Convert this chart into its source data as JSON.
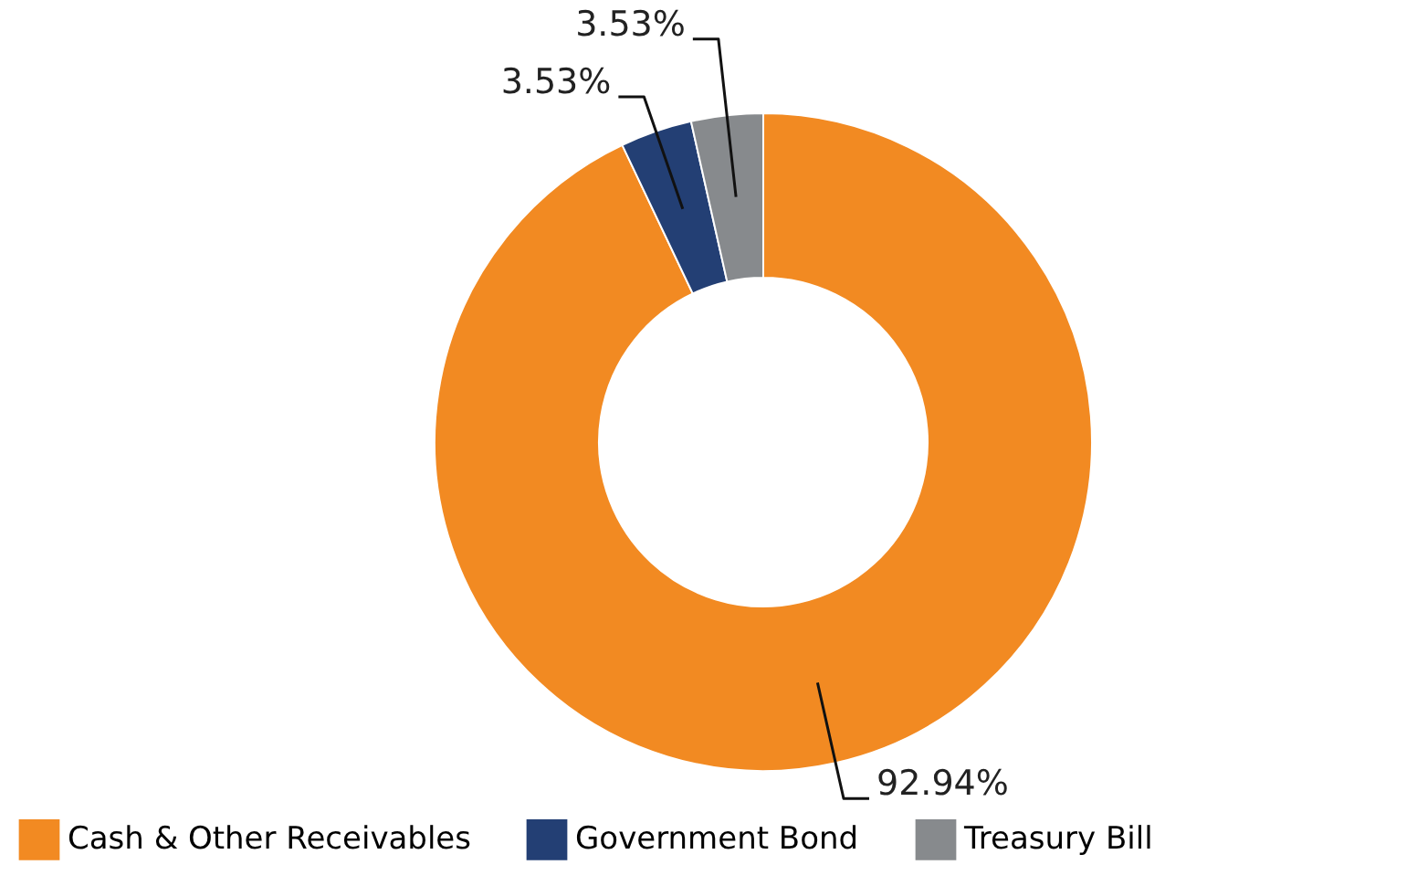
{
  "chart_data": {
    "type": "donut",
    "categories": [
      "Cash & Other Receivables",
      "Government Bond",
      "Treasury Bill"
    ],
    "values": [
      92.94,
      3.53,
      3.53
    ],
    "colors": [
      "#f28a22",
      "#233f74",
      "#878a8d"
    ],
    "value_labels": [
      "92.94%",
      "3.53%",
      "3.53%"
    ],
    "legend": "bottom"
  }
}
